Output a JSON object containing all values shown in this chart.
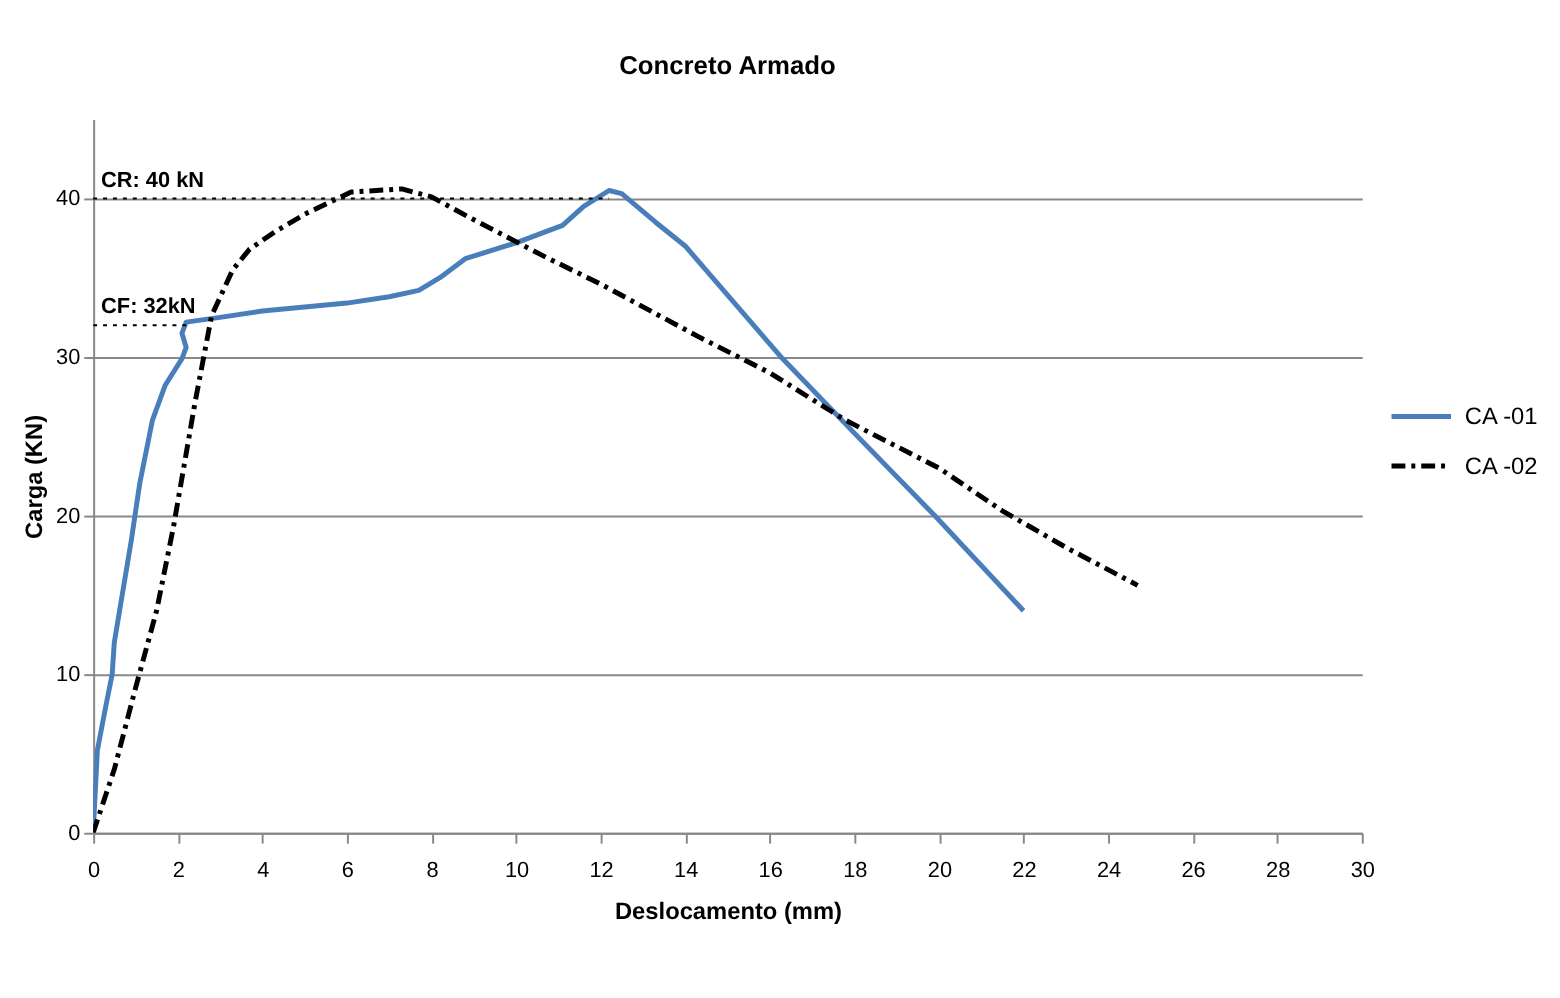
{
  "chart_data": {
    "type": "line",
    "title": "Concreto Armado",
    "xlabel": "Deslocamento (mm)",
    "ylabel": "Carga (KN)",
    "xlim": [
      0,
      30
    ],
    "xticks": [
      0,
      2,
      4,
      6,
      8,
      10,
      12,
      14,
      16,
      18,
      20,
      22,
      24,
      26,
      28,
      30
    ],
    "ylim": [
      0,
      45
    ],
    "yticks": [
      0,
      10,
      20,
      30,
      40
    ],
    "grid": "y",
    "legend": "right",
    "series": [
      {
        "name": "CA -01",
        "color": "#4a7ebb",
        "line_style": "solid",
        "x": [
          0,
          0.1,
          0.3,
          0.45,
          0.5,
          0.9,
          1.1,
          1.4,
          1.7,
          2.1,
          2.2,
          2.1,
          2.2,
          3,
          4,
          6,
          7,
          7.7,
          8.2,
          8.8,
          10,
          11.1,
          11.6,
          12.2,
          12.5,
          13.3,
          14,
          16.3,
          18,
          19.9,
          22
        ],
        "values": [
          0,
          5.2,
          8,
          10,
          12,
          18.4,
          22,
          26,
          28.2,
          29.9,
          30.6,
          31.5,
          32.2,
          32.5,
          32.9,
          33.4,
          33.8,
          34.2,
          35,
          36.2,
          37.2,
          38.3,
          39.5,
          40.5,
          40.3,
          38.5,
          37,
          29.9,
          25.2,
          20,
          14
        ]
      },
      {
        "name": "CA -02",
        "color": "#000000",
        "line_style": "dashed",
        "x": [
          0,
          0.5,
          1,
          1.5,
          1.9,
          2.4,
          2.8,
          3.3,
          3.7,
          4.3,
          5,
          6.1,
          7.3,
          8,
          8.9,
          10.7,
          12,
          14.3,
          16,
          17.8,
          20,
          21.5,
          23,
          24.7
        ],
        "values": [
          0,
          4,
          9.1,
          14,
          19.3,
          27,
          32.6,
          35.5,
          36.8,
          37.9,
          39,
          40.4,
          40.6,
          40.1,
          38.8,
          36.3,
          34.6,
          31.3,
          29,
          26,
          23,
          20.3,
          18,
          15.6
        ]
      }
    ],
    "ref_lines": [
      {
        "axis": "y",
        "value": 40,
        "label": "CR: 40 kN",
        "line_style": "dotted",
        "color": "#000000"
      },
      {
        "axis": "y",
        "value": 32,
        "label": "CF:  32kN",
        "line_style": "dotted",
        "color": "#000000"
      }
    ]
  }
}
